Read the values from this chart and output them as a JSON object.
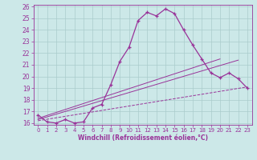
{
  "line1_x": [
    0,
    1,
    2,
    3,
    4,
    5,
    6,
    7,
    8,
    9,
    10,
    11,
    12,
    13,
    14,
    15,
    16,
    17,
    18,
    19,
    20,
    21,
    22,
    23
  ],
  "line1_y": [
    16.7,
    16.1,
    16.0,
    16.3,
    16.0,
    16.1,
    17.3,
    17.6,
    19.3,
    21.3,
    22.5,
    24.8,
    25.5,
    25.2,
    25.8,
    25.4,
    24.0,
    22.7,
    21.5,
    20.3,
    19.9,
    20.3,
    19.8,
    19.0
  ],
  "line2_x": [
    0,
    20
  ],
  "line2_y": [
    16.4,
    21.5
  ],
  "line3_x": [
    0,
    22
  ],
  "line3_y": [
    16.3,
    21.4
  ],
  "line4_x": [
    0,
    23
  ],
  "line4_y": [
    16.2,
    19.1
  ],
  "color": "#993399",
  "bg_color": "#cce8e8",
  "grid_color": "#aacccc",
  "xlabel": "Windchill (Refroidissement éolien,°C)",
  "xlim": [
    -0.5,
    23.5
  ],
  "ylim": [
    15.85,
    26.15
  ],
  "yticks": [
    16,
    17,
    18,
    19,
    20,
    21,
    22,
    23,
    24,
    25,
    26
  ],
  "xticks": [
    0,
    1,
    2,
    3,
    4,
    5,
    6,
    7,
    8,
    9,
    10,
    11,
    12,
    13,
    14,
    15,
    16,
    17,
    18,
    19,
    20,
    21,
    22,
    23
  ]
}
